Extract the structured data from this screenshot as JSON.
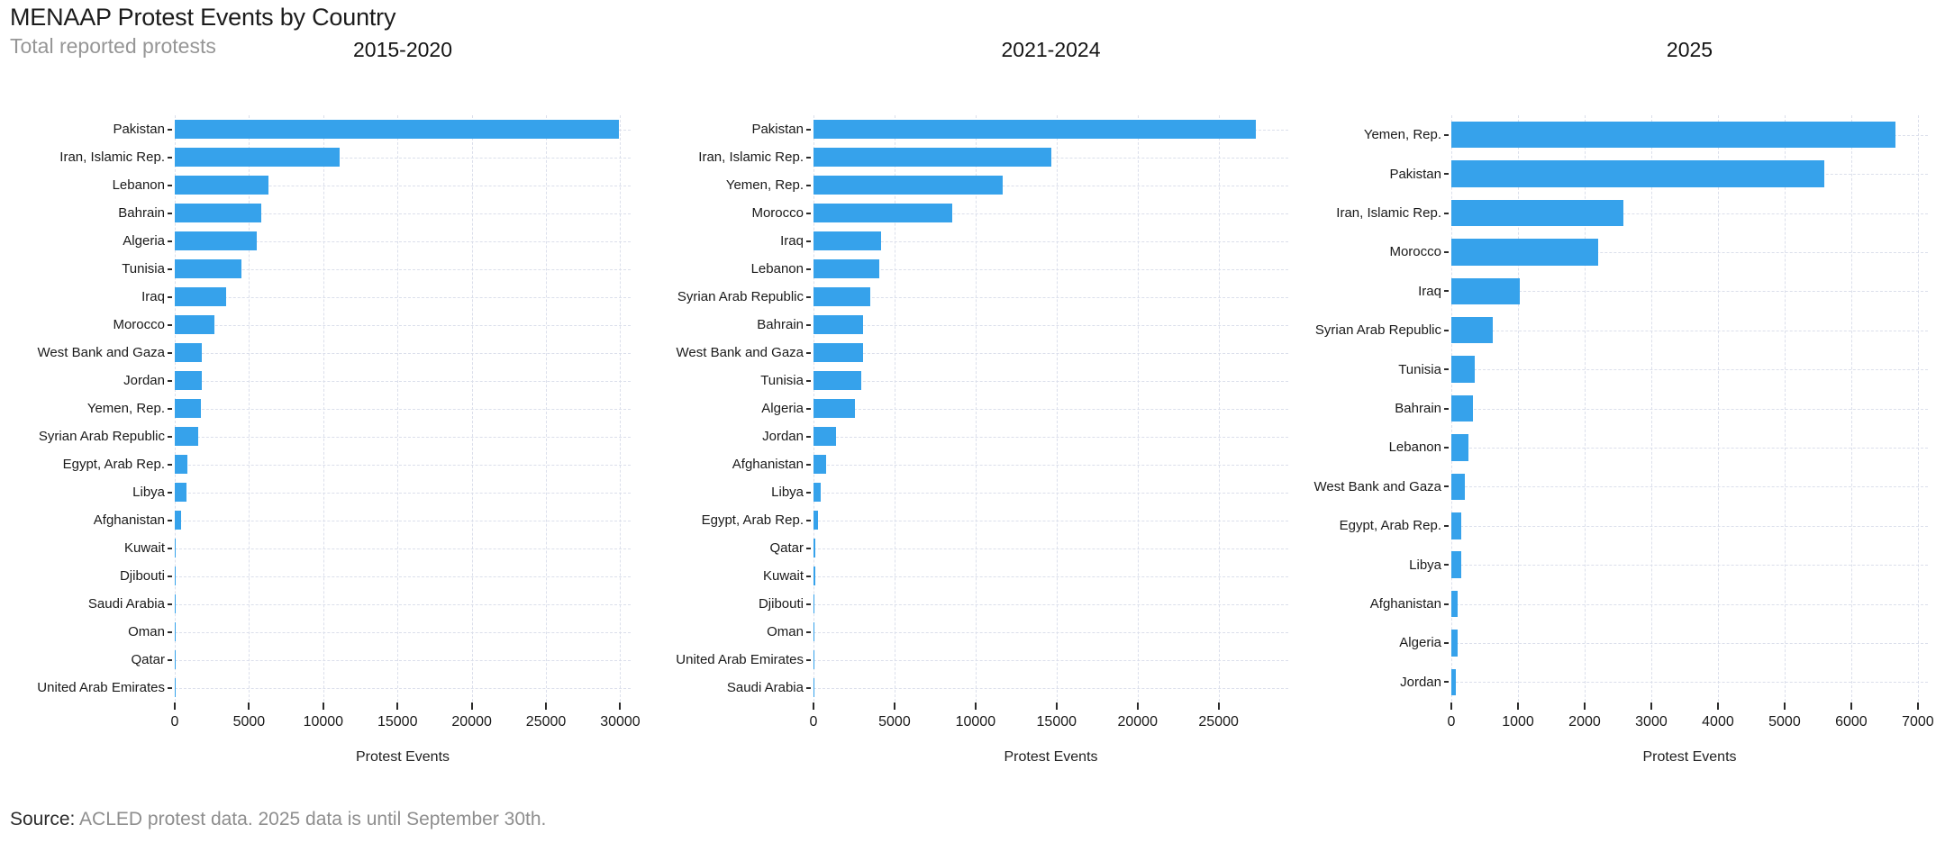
{
  "header": {
    "title": "MENAAP Protest Events by Country",
    "subtitle": "Total reported protests"
  },
  "source": {
    "label": "Source:",
    "text": " ACLED protest data. 2025 data is until September 30th."
  },
  "colors": {
    "bar": "#36a2eb",
    "grid": "#dbdfeb",
    "title_text": "#1c1c1c",
    "muted_text": "#8e8e8e"
  },
  "chart_data": [
    {
      "type": "bar",
      "orientation": "horizontal",
      "title": "2015-2020",
      "xlabel": "Protest Events",
      "xlim": [
        0,
        30700
      ],
      "ticks": [
        0,
        5000,
        10000,
        15000,
        20000,
        25000,
        30000
      ],
      "grid": true,
      "categories": [
        "Pakistan",
        "Iran, Islamic Rep.",
        "Lebanon",
        "Bahrain",
        "Algeria",
        "Tunisia",
        "Iraq",
        "Morocco",
        "West Bank and Gaza",
        "Jordan",
        "Yemen, Rep.",
        "Syrian Arab Republic",
        "Egypt, Arab Rep.",
        "Libya",
        "Afghanistan",
        "Kuwait",
        "Djibouti",
        "Saudi Arabia",
        "Oman",
        "Qatar",
        "United Arab Emirates"
      ],
      "values": [
        29900,
        11100,
        6300,
        5850,
        5500,
        4500,
        3450,
        2680,
        1820,
        1800,
        1780,
        1550,
        820,
        760,
        450,
        40,
        35,
        30,
        25,
        20,
        10
      ]
    },
    {
      "type": "bar",
      "orientation": "horizontal",
      "title": "2021-2024",
      "xlabel": "Protest Events",
      "xlim": [
        0,
        29300
      ],
      "ticks": [
        0,
        5000,
        10000,
        15000,
        20000,
        25000
      ],
      "grid": true,
      "categories": [
        "Pakistan",
        "Iran, Islamic Rep.",
        "Yemen, Rep.",
        "Morocco",
        "Iraq",
        "Lebanon",
        "Syrian Arab Republic",
        "Bahrain",
        "West Bank and Gaza",
        "Tunisia",
        "Algeria",
        "Jordan",
        "Afghanistan",
        "Libya",
        "Egypt, Arab Rep.",
        "Qatar",
        "Kuwait",
        "Djibouti",
        "Oman",
        "United Arab Emirates",
        "Saudi Arabia"
      ],
      "values": [
        27300,
        14650,
        11650,
        8570,
        4180,
        4060,
        3500,
        3080,
        3060,
        2950,
        2560,
        1390,
        780,
        450,
        290,
        90,
        85,
        75,
        65,
        20,
        15
      ]
    },
    {
      "type": "bar",
      "orientation": "horizontal",
      "title": "2025",
      "xlabel": "Protest Events",
      "xlim": [
        0,
        7150
      ],
      "ticks": [
        0,
        1000,
        2000,
        3000,
        4000,
        5000,
        6000,
        7000
      ],
      "grid": true,
      "categories": [
        "Yemen, Rep.",
        "Pakistan",
        "Iran, Islamic Rep.",
        "Morocco",
        "Iraq",
        "Syrian Arab Republic",
        "Tunisia",
        "Bahrain",
        "Lebanon",
        "West Bank and Gaza",
        "Egypt, Arab Rep.",
        "Libya",
        "Afghanistan",
        "Algeria",
        "Jordan"
      ],
      "values": [
        6660,
        5590,
        2580,
        2200,
        1030,
        620,
        350,
        320,
        255,
        205,
        155,
        150,
        95,
        90,
        70
      ]
    }
  ]
}
